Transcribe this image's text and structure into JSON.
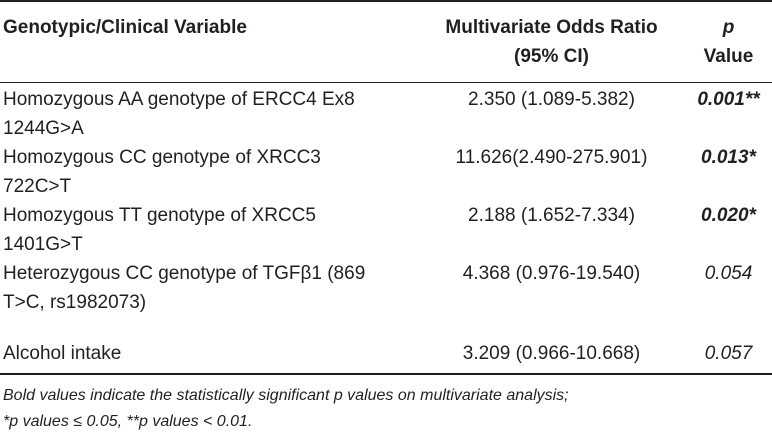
{
  "table": {
    "headers": {
      "variable": "Genotypic/Clinical Variable",
      "or_line1": "Multivariate Odds Ratio",
      "or_line2": "(95% CI)",
      "p_line1": "p",
      "p_line2": "Value"
    },
    "rows": [
      {
        "variable_line1": "Homozygous AA genotype of ERCC4 Ex8",
        "variable_line2": "1244G>A",
        "odds_ratio": "2.350 (1.089-5.382)",
        "p_value": "0.001**",
        "significant": true
      },
      {
        "variable_line1": "Homozygous CC genotype of XRCC3",
        "variable_line2": "722C>T",
        "odds_ratio": "11.626(2.490-275.901)",
        "p_value": "0.013*",
        "significant": true
      },
      {
        "variable_line1": "Homozygous TT genotype of XRCC5",
        "variable_line2": "1401G>T",
        "odds_ratio": "2.188 (1.652-7.334)",
        "p_value": "0.020*",
        "significant": true
      },
      {
        "variable_line1": "Heterozygous CC genotype of TGFβ1 (869",
        "variable_line2": "T>C, rs1982073)",
        "odds_ratio": "4.368 (0.976-19.540)",
        "p_value": "0.054",
        "significant": false
      },
      {
        "variable_line1": "Alcohol intake",
        "variable_line2": "",
        "odds_ratio": "3.209 (0.966-10.668)",
        "p_value": "0.057",
        "significant": false
      }
    ],
    "footnote_line1": "Bold values indicate the statistically significant p values on multivariate analysis;",
    "footnote_line2": "*p values ≤ 0.05, **p values < 0.01."
  }
}
